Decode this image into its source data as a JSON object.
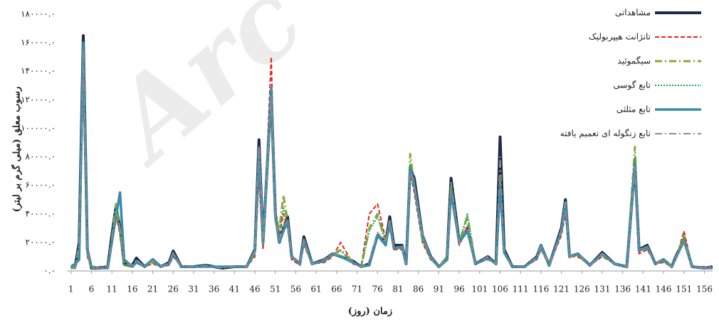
{
  "chart_data": {
    "type": "line",
    "watermark": "Arc",
    "x_label": "زمان (روز)",
    "y_label": "رسوب معلق (میلی گرم بر لیتر)",
    "legend": "upper right",
    "xlim": [
      0,
      158
    ],
    "xticks": [
      1,
      6,
      11,
      16,
      21,
      26,
      31,
      36,
      41,
      46,
      51,
      56,
      61,
      66,
      71,
      76,
      81,
      86,
      91,
      96,
      101,
      106,
      111,
      116,
      121,
      126,
      131,
      136,
      141,
      146,
      151,
      156
    ],
    "ylim": [
      0,
      180000
    ],
    "yticks": [
      {
        "value": 0,
        "label": "۰.۰"
      },
      {
        "value": 20000,
        "label": "۲۰۰۰۰.۰"
      },
      {
        "value": 40000,
        "label": "۴۰۰۰۰.۰"
      },
      {
        "value": 60000,
        "label": "۶۰۰۰۰.۰"
      },
      {
        "value": 80000,
        "label": "۸۰۰۰۰.۰"
      },
      {
        "value": 100000,
        "label": "۱۰۰۰۰۰.۰"
      },
      {
        "value": 120000,
        "label": "۱۲۰۰۰۰.۰"
      },
      {
        "value": 140000,
        "label": "۱۴۰۰۰۰.۰"
      },
      {
        "value": 160000,
        "label": "۱۶۰۰۰۰.۰"
      },
      {
        "value": 180000,
        "label": "۱۸۰۰۰۰.۰"
      }
    ],
    "x": [
      1,
      2,
      3,
      4,
      5,
      6,
      8,
      10,
      11,
      12,
      13,
      14,
      16,
      17,
      19,
      21,
      23,
      25,
      26,
      28,
      31,
      34,
      38,
      41,
      44,
      46,
      47,
      48,
      50,
      51,
      52,
      53,
      54,
      55,
      57,
      58,
      60,
      63,
      65,
      67,
      70,
      72,
      74,
      76,
      78,
      79,
      80,
      82,
      83,
      84,
      85,
      87,
      89,
      91,
      93,
      94,
      96,
      98,
      100,
      103,
      105,
      106,
      107,
      109,
      112,
      115,
      116,
      118,
      121,
      122,
      123,
      125,
      128,
      131,
      134,
      137,
      139,
      140,
      142,
      144,
      146,
      148,
      149,
      151,
      153,
      156,
      158
    ],
    "series": [
      {
        "name": "مشاهداتی",
        "color": "#1c2a48",
        "linestyle": "solid",
        "linewidth": 4,
        "values": [
          2000,
          3000,
          20000,
          165000,
          15000,
          2000,
          2000,
          3000,
          25000,
          45000,
          30000,
          5000,
          4000,
          9000,
          3000,
          8000,
          3000,
          6000,
          14000,
          3000,
          3000,
          4000,
          2000,
          3000,
          3000,
          15000,
          92000,
          20000,
          125000,
          40000,
          20000,
          30000,
          38000,
          10000,
          5000,
          24000,
          5000,
          8000,
          12000,
          10000,
          7000,
          3000,
          5000,
          25000,
          20000,
          38000,
          18000,
          18000,
          5000,
          72000,
          65000,
          25000,
          10000,
          3000,
          8000,
          65000,
          20000,
          30000,
          5000,
          10000,
          5000,
          94000,
          15000,
          3000,
          3000,
          10000,
          18000,
          4000,
          30000,
          50000,
          10000,
          12000,
          4000,
          13000,
          5000,
          3000,
          75000,
          15000,
          18000,
          5000,
          8000,
          3000,
          10000,
          22000,
          3000,
          2000,
          3000
        ]
      },
      {
        "name": "تانژانت هیپربولیک",
        "color": "#e42320",
        "linestyle": "dashed",
        "linewidth": 2,
        "values": [
          3000,
          3000,
          15000,
          140000,
          10000,
          3000,
          3000,
          3000,
          20000,
          40000,
          25000,
          4000,
          3000,
          6000,
          3000,
          5000,
          3000,
          4000,
          10000,
          3000,
          3000,
          3000,
          3000,
          3000,
          3000,
          10000,
          65000,
          15000,
          150000,
          35000,
          25000,
          40000,
          30000,
          8000,
          4000,
          18000,
          5000,
          6000,
          10000,
          20000,
          5000,
          3000,
          40000,
          47000,
          22000,
          30000,
          15000,
          15000,
          5000,
          70000,
          55000,
          20000,
          8000,
          3000,
          10000,
          55000,
          18000,
          30000,
          5000,
          8000,
          5000,
          60000,
          12000,
          3000,
          3000,
          8000,
          15000,
          4000,
          25000,
          40000,
          10000,
          10000,
          4000,
          10000,
          5000,
          3000,
          80000,
          12000,
          15000,
          5000,
          6000,
          3000,
          8000,
          28000,
          3000,
          3000,
          3000
        ]
      },
      {
        "name": "سیگموئید",
        "color": "#8aa83a",
        "linestyle": "dashdot",
        "linewidth": 3,
        "values": [
          2000,
          2000,
          18000,
          148000,
          12000,
          2000,
          2000,
          2000,
          22000,
          47000,
          28000,
          4000,
          3000,
          7000,
          3000,
          6000,
          3000,
          5000,
          12000,
          3000,
          3000,
          3000,
          3000,
          3000,
          3000,
          12000,
          80000,
          18000,
          122000,
          38000,
          30000,
          53000,
          35000,
          10000,
          5000,
          20000,
          5000,
          7000,
          11000,
          15000,
          6000,
          3000,
          30000,
          40000,
          20000,
          35000,
          16000,
          16000,
          5000,
          82000,
          60000,
          22000,
          9000,
          3000,
          10000,
          60000,
          20000,
          38000,
          5000,
          9000,
          5000,
          62000,
          13000,
          3000,
          3000,
          9000,
          16000,
          4000,
          28000,
          45000,
          10000,
          11000,
          4000,
          11000,
          5000,
          3000,
          87000,
          14000,
          16000,
          5000,
          7000,
          3000,
          9000,
          25000,
          3000,
          2000,
          2000
        ]
      },
      {
        "name": "تابع گوسی",
        "color": "#1fa64a",
        "linestyle": "dotted",
        "linewidth": 2,
        "values": [
          2000,
          2000,
          17000,
          150000,
          12000,
          2000,
          2000,
          2000,
          22000,
          45000,
          28000,
          4000,
          3000,
          7000,
          3000,
          6000,
          3000,
          5000,
          12000,
          3000,
          3000,
          3000,
          3000,
          3000,
          3000,
          12000,
          78000,
          18000,
          120000,
          37000,
          27000,
          45000,
          33000,
          10000,
          5000,
          21000,
          5000,
          7000,
          11000,
          14000,
          6000,
          3000,
          28000,
          38000,
          20000,
          35000,
          16000,
          16000,
          5000,
          75000,
          60000,
          22000,
          9000,
          3000,
          10000,
          62000,
          20000,
          40000,
          5000,
          9000,
          5000,
          60000,
          13000,
          3000,
          3000,
          9000,
          16000,
          4000,
          28000,
          45000,
          10000,
          11000,
          4000,
          11000,
          5000,
          3000,
          80000,
          14000,
          16000,
          5000,
          7000,
          3000,
          9000,
          24000,
          3000,
          2000,
          2000
        ]
      },
      {
        "name": "تابع مثلثی",
        "color": "#3b8bab",
        "linestyle": "solid",
        "linewidth": 3.5,
        "values": [
          3000,
          5000,
          8000,
          160000,
          15000,
          3000,
          2000,
          2000,
          20000,
          38000,
          55000,
          8000,
          3000,
          6000,
          3000,
          8000,
          3000,
          5000,
          12000,
          3000,
          3000,
          3000,
          3000,
          3000,
          3000,
          14000,
          85000,
          20000,
          128000,
          38000,
          20000,
          28000,
          35000,
          10000,
          5000,
          22000,
          5000,
          7000,
          12000,
          10000,
          6000,
          3000,
          4000,
          25000,
          18000,
          35000,
          16000,
          17000,
          5000,
          72000,
          60000,
          25000,
          9000,
          3000,
          8000,
          55000,
          20000,
          28000,
          5000,
          9000,
          5000,
          60000,
          13000,
          3000,
          3000,
          9000,
          18000,
          4000,
          28000,
          48000,
          10000,
          12000,
          4000,
          12000,
          5000,
          3000,
          75000,
          14000,
          17000,
          5000,
          8000,
          3000,
          9000,
          21000,
          3000,
          2000,
          2000
        ]
      },
      {
        "name": "تابع زنگوله ای تعمیم یافته",
        "color": "#8c8c8c",
        "linestyle": "dashdot",
        "linewidth": 2,
        "values": [
          2000,
          3000,
          18000,
          155000,
          13000,
          2000,
          2000,
          3000,
          23000,
          42000,
          30000,
          5000,
          4000,
          8000,
          3000,
          7000,
          3000,
          6000,
          13000,
          3000,
          3000,
          4000,
          2000,
          3000,
          3000,
          14000,
          88000,
          20000,
          122000,
          38000,
          22000,
          32000,
          35000,
          10000,
          5000,
          22000,
          5000,
          8000,
          12000,
          11000,
          7000,
          3000,
          6000,
          27000,
          20000,
          36000,
          17000,
          17000,
          5000,
          70000,
          62000,
          24000,
          10000,
          3000,
          8000,
          62000,
          20000,
          32000,
          5000,
          10000,
          5000,
          80000,
          14000,
          3000,
          3000,
          10000,
          17000,
          4000,
          29000,
          48000,
          10000,
          12000,
          4000,
          12000,
          5000,
          3000,
          73000,
          15000,
          17000,
          5000,
          8000,
          3000,
          10000,
          22000,
          3000,
          2000,
          3000
        ]
      }
    ]
  }
}
